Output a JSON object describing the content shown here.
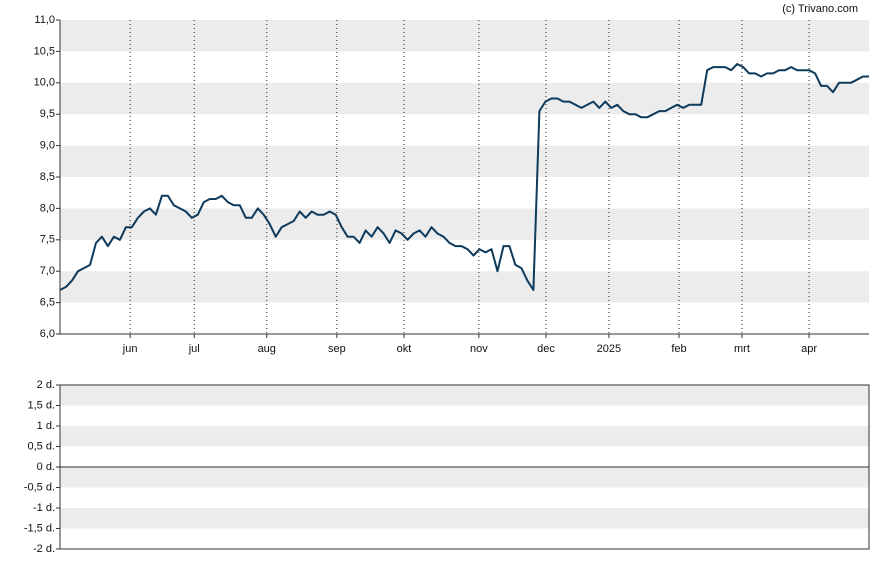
{
  "chart_data": [
    {
      "type": "line",
      "source": "(c) Trivano.com",
      "xlim": [
        0,
        135
      ],
      "xticks": [
        {
          "value": 11.7,
          "label": "jun"
        },
        {
          "value": 22.4,
          "label": "jul"
        },
        {
          "value": 34.5,
          "label": "aug"
        },
        {
          "value": 46.2,
          "label": "sep"
        },
        {
          "value": 57.4,
          "label": "okt"
        },
        {
          "value": 69.9,
          "label": "nov"
        },
        {
          "value": 81.1,
          "label": "dec"
        },
        {
          "value": 91.6,
          "label": "2025"
        },
        {
          "value": 103.3,
          "label": "feb"
        },
        {
          "value": 113.8,
          "label": "mrt"
        },
        {
          "value": 125.0,
          "label": "apr"
        }
      ],
      "ylim": [
        6,
        11
      ],
      "yticks": [
        {
          "value": 6,
          "label": "6,0"
        },
        {
          "value": 6.5,
          "label": "6,5"
        },
        {
          "value": 7,
          "label": "7,0"
        },
        {
          "value": 7.5,
          "label": "7,5"
        },
        {
          "value": 8,
          "label": "8,0"
        },
        {
          "value": 8.5,
          "label": "8,5"
        },
        {
          "value": 9,
          "label": "9,0"
        },
        {
          "value": 9.5,
          "label": "9,5"
        },
        {
          "value": 10,
          "label": "10,0"
        },
        {
          "value": 10.5,
          "label": "10,5"
        },
        {
          "value": 11,
          "label": "11,0"
        }
      ],
      "grid": true,
      "color": "#0e3a5c",
      "values": [
        6.7,
        6.75,
        6.85,
        7.0,
        7.05,
        7.1,
        7.45,
        7.55,
        7.4,
        7.55,
        7.5,
        7.7,
        7.7,
        7.85,
        7.95,
        8.0,
        7.9,
        8.2,
        8.2,
        8.05,
        8.0,
        7.95,
        7.85,
        7.9,
        8.1,
        8.15,
        8.15,
        8.2,
        8.1,
        8.05,
        8.05,
        7.85,
        7.85,
        8.0,
        7.9,
        7.75,
        7.55,
        7.7,
        7.75,
        7.8,
        7.95,
        7.85,
        7.95,
        7.9,
        7.9,
        7.95,
        7.9,
        7.7,
        7.55,
        7.55,
        7.45,
        7.65,
        7.55,
        7.7,
        7.6,
        7.45,
        7.65,
        7.6,
        7.5,
        7.6,
        7.65,
        7.55,
        7.7,
        7.6,
        7.55,
        7.45,
        7.4,
        7.4,
        7.35,
        7.25,
        7.35,
        7.3,
        7.35,
        7.0,
        7.4,
        7.4,
        7.1,
        7.05,
        6.85,
        6.7,
        9.55,
        9.7,
        9.75,
        9.75,
        9.7,
        9.7,
        9.65,
        9.6,
        9.65,
        9.7,
        9.6,
        9.7,
        9.6,
        9.65,
        9.55,
        9.5,
        9.5,
        9.45,
        9.45,
        9.5,
        9.55,
        9.55,
        9.6,
        9.65,
        9.6,
        9.65,
        9.65,
        9.65,
        10.2,
        10.25,
        10.25,
        10.25,
        10.2,
        10.3,
        10.25,
        10.15,
        10.15,
        10.1,
        10.15,
        10.15,
        10.2,
        10.2,
        10.25,
        10.2,
        10.2,
        10.2,
        10.15,
        9.95,
        9.95,
        9.85,
        10.0,
        10.0,
        10.0,
        10.05,
        10.1,
        10.1
      ]
    },
    {
      "type": "bar",
      "ylim": [
        -2,
        2
      ],
      "yticks": [
        {
          "value": -2,
          "label": "-2 d."
        },
        {
          "value": -1.5,
          "label": "-1,5 d."
        },
        {
          "value": -1,
          "label": "-1 d."
        },
        {
          "value": -0.5,
          "label": "-0,5 d."
        },
        {
          "value": 0,
          "label": "0 d."
        },
        {
          "value": 0.5,
          "label": "0,5 d."
        },
        {
          "value": 1,
          "label": "1 d."
        },
        {
          "value": 1.5,
          "label": "1,5 d."
        },
        {
          "value": 2,
          "label": "2 d."
        }
      ],
      "grid": true
    }
  ]
}
